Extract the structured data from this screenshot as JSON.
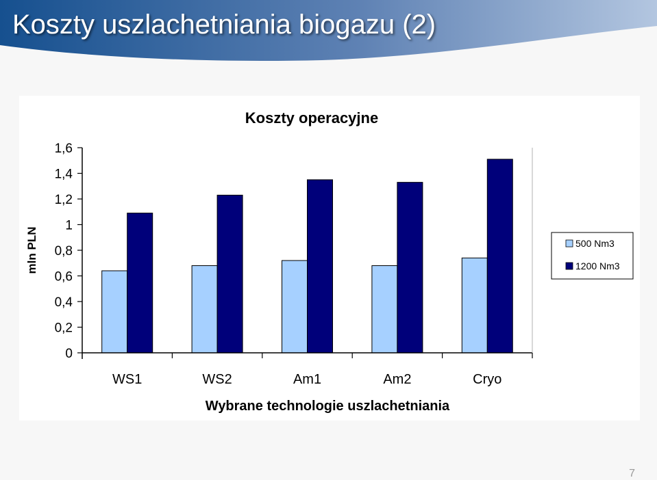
{
  "slide": {
    "title": "Koszty uszlachetniania biogazu (2)",
    "page_number": "7"
  },
  "colors": {
    "banner_dark": "#16508f",
    "banner_light": "#b3c6e0",
    "series_500": "#a6d0ff",
    "series_1200": "#00007a"
  },
  "chart_data": {
    "type": "bar",
    "title": "Koszty operacyjne",
    "xlabel": "Wybrane technologie uszlachetniania",
    "ylabel": "mln PLN",
    "categories": [
      "WS1",
      "WS2",
      "Am1",
      "Am2",
      "Cryo"
    ],
    "series": [
      {
        "name": "500 Nm3",
        "values": [
          0.64,
          0.68,
          0.72,
          0.68,
          0.74
        ]
      },
      {
        "name": "1200 Nm3",
        "values": [
          1.09,
          1.23,
          1.35,
          1.33,
          1.51
        ]
      }
    ],
    "ylim": [
      0,
      1.6
    ],
    "yticks": [
      "0",
      "0,2",
      "0,4",
      "0,6",
      "0,8",
      "1",
      "1,2",
      "1,4",
      "1,6"
    ],
    "grid": false,
    "legend_position": "right"
  }
}
